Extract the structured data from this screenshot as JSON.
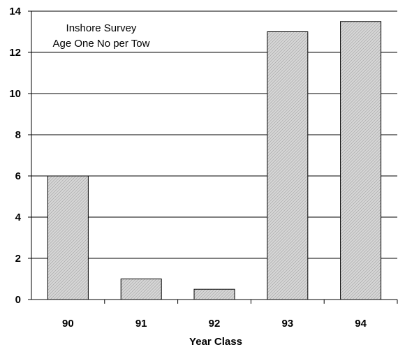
{
  "chart_data": {
    "type": "bar",
    "categories": [
      "90",
      "91",
      "92",
      "93",
      "94"
    ],
    "values": [
      6.0,
      1.0,
      0.5,
      13.0,
      13.5
    ],
    "xlabel": "Year Class",
    "ylabel": "",
    "ylim": [
      0,
      14
    ],
    "yticks": [
      0,
      2,
      4,
      6,
      8,
      10,
      12,
      14
    ],
    "annotation": [
      "Inshore Survey",
      "Age One No per Tow"
    ],
    "grid": "horizontal",
    "bar_fill": "#c8c8c8",
    "bar_stroke": "#000000"
  }
}
